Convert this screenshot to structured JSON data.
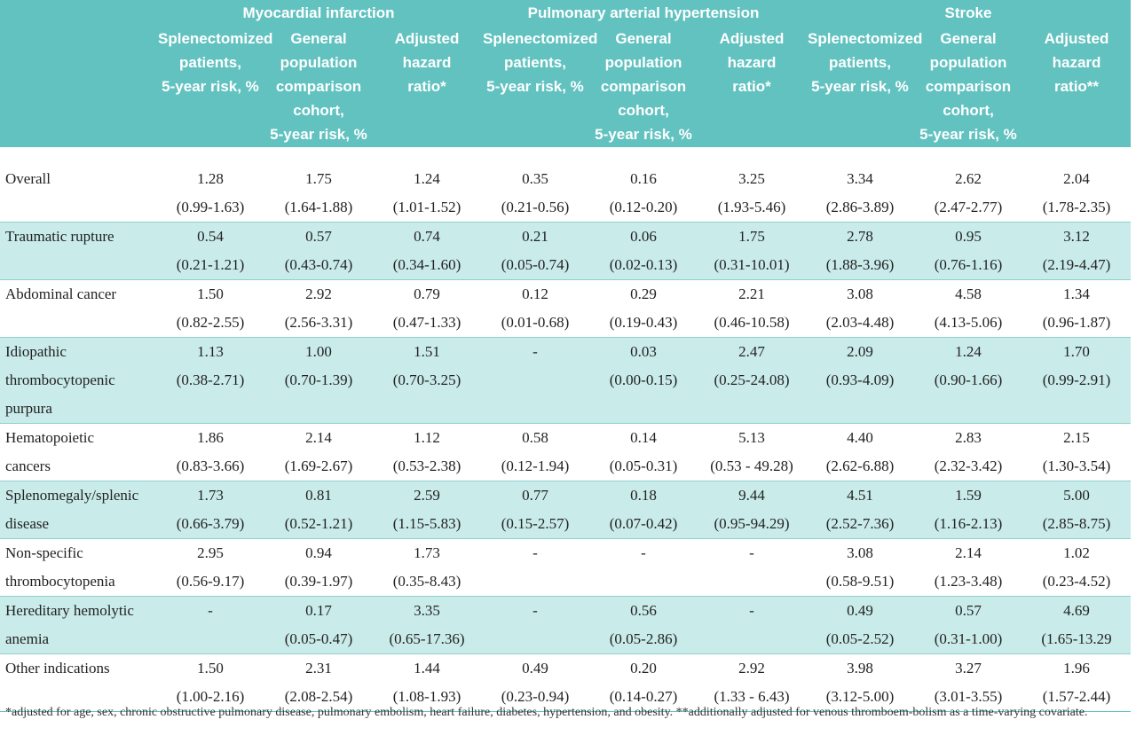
{
  "groups": {
    "mi": "Myocardial infarction",
    "pah": "Pulmonary arterial hypertension",
    "stroke": "Stroke"
  },
  "subheaders": {
    "splen": [
      "Splenectomized",
      "patients,",
      "5-year risk, %"
    ],
    "general": [
      "General",
      "population",
      "comparison",
      "cohort,",
      "5-year risk, %"
    ],
    "adj1": [
      "Adjusted",
      "hazard",
      "ratio*"
    ],
    "adj2": [
      "Adjusted",
      "hazard",
      "ratio**"
    ]
  },
  "rows": [
    {
      "label": [
        "Overall"
      ],
      "cells": [
        [
          "1.28",
          "(0.99-1.63)"
        ],
        [
          "1.75",
          "(1.64-1.88)"
        ],
        [
          "1.24",
          "(1.01-1.52)"
        ],
        [
          "0.35",
          "(0.21-0.56)"
        ],
        [
          "0.16",
          "(0.12-0.20)"
        ],
        [
          "3.25",
          "(1.93-5.46)"
        ],
        [
          "3.34",
          "(2.86-3.89)"
        ],
        [
          "2.62",
          "(2.47-2.77)"
        ],
        [
          "2.04",
          "(1.78-2.35)"
        ]
      ]
    },
    {
      "label": [
        "Traumatic rupture"
      ],
      "cells": [
        [
          "0.54",
          "(0.21-1.21)"
        ],
        [
          "0.57",
          "(0.43-0.74)"
        ],
        [
          "0.74",
          "(0.34-1.60)"
        ],
        [
          "0.21",
          "(0.05-0.74)"
        ],
        [
          "0.06",
          "(0.02-0.13)"
        ],
        [
          "1.75",
          "(0.31-10.01)"
        ],
        [
          "2.78",
          "(1.88-3.96)"
        ],
        [
          "0.95",
          "(0.76-1.16)"
        ],
        [
          "3.12",
          "(2.19-4.47)"
        ]
      ]
    },
    {
      "label": [
        "Abdominal cancer"
      ],
      "cells": [
        [
          "1.50",
          "(0.82-2.55)"
        ],
        [
          "2.92",
          "(2.56-3.31)"
        ],
        [
          "0.79",
          "(0.47-1.33)"
        ],
        [
          "0.12",
          "(0.01-0.68)"
        ],
        [
          "0.29",
          "(0.19-0.43)"
        ],
        [
          "2.21",
          "(0.46-10.58)"
        ],
        [
          "3.08",
          "(2.03-4.48)"
        ],
        [
          "4.58",
          "(4.13-5.06)"
        ],
        [
          "1.34",
          "(0.96-1.87)"
        ]
      ]
    },
    {
      "label": [
        "Idiopathic",
        "thrombocytopenic",
        "purpura"
      ],
      "cells": [
        [
          "1.13",
          "(0.38-2.71)"
        ],
        [
          "1.00",
          "(0.70-1.39)"
        ],
        [
          "1.51",
          "(0.70-3.25)"
        ],
        [
          "-",
          ""
        ],
        [
          "0.03",
          "(0.00-0.15)"
        ],
        [
          "2.47",
          "(0.25-24.08)"
        ],
        [
          "2.09",
          "(0.93-4.09)"
        ],
        [
          "1.24",
          "(0.90-1.66)"
        ],
        [
          "1.70",
          "(0.99-2.91)"
        ]
      ]
    },
    {
      "label": [
        "Hematopoietic",
        "cancers"
      ],
      "cells": [
        [
          "1.86",
          "(0.83-3.66)"
        ],
        [
          "2.14",
          "(1.69-2.67)"
        ],
        [
          "1.12",
          "(0.53-2.38)"
        ],
        [
          "0.58",
          "(0.12-1.94)"
        ],
        [
          "0.14",
          "(0.05-0.31)"
        ],
        [
          "5.13",
          "(0.53 - 49.28)"
        ],
        [
          "4.40",
          "(2.62-6.88)"
        ],
        [
          "2.83",
          "(2.32-3.42)"
        ],
        [
          "2.15",
          "(1.30-3.54)"
        ]
      ]
    },
    {
      "label": [
        "Splenomegaly/splenic",
        "disease"
      ],
      "cells": [
        [
          "1.73",
          "(0.66-3.79)"
        ],
        [
          "0.81",
          "(0.52-1.21)"
        ],
        [
          "2.59",
          "(1.15-5.83)"
        ],
        [
          "0.77",
          "(0.15-2.57)"
        ],
        [
          "0.18",
          "(0.07-0.42)"
        ],
        [
          "9.44",
          "(0.95-94.29)"
        ],
        [
          "4.51",
          "(2.52-7.36)"
        ],
        [
          "1.59",
          "(1.16-2.13)"
        ],
        [
          "5.00",
          "(2.85-8.75)"
        ]
      ]
    },
    {
      "label": [
        "Non-specific",
        "thrombocytopenia"
      ],
      "cells": [
        [
          "2.95",
          "(0.56-9.17)"
        ],
        [
          "0.94",
          "(0.39-1.97)"
        ],
        [
          "1.73",
          "(0.35-8.43)"
        ],
        [
          "-",
          ""
        ],
        [
          "-",
          ""
        ],
        [
          "-",
          ""
        ],
        [
          "3.08",
          "(0.58-9.51)"
        ],
        [
          "2.14",
          "(1.23-3.48)"
        ],
        [
          "1.02",
          "(0.23-4.52)"
        ]
      ]
    },
    {
      "label": [
        "Hereditary hemolytic",
        "anemia"
      ],
      "cells": [
        [
          "-",
          ""
        ],
        [
          "0.17",
          "(0.05-0.47)"
        ],
        [
          "3.35",
          "(0.65-17.36)"
        ],
        [
          "-",
          ""
        ],
        [
          "0.56",
          "(0.05-2.86)"
        ],
        [
          "-",
          ""
        ],
        [
          "0.49",
          "(0.05-2.52)"
        ],
        [
          "0.57",
          "(0.31-1.00)"
        ],
        [
          "4.69",
          "(1.65-13.29"
        ]
      ]
    },
    {
      "label": [
        "Other indications"
      ],
      "cells": [
        [
          "1.50",
          "(1.00-2.16)"
        ],
        [
          "2.31",
          "(2.08-2.54)"
        ],
        [
          "1.44",
          "(1.08-1.93)"
        ],
        [
          "0.49",
          "(0.23-0.94)"
        ],
        [
          "0.20",
          "(0.14-0.27)"
        ],
        [
          "2.92",
          "(1.33 - 6.43)"
        ],
        [
          "3.98",
          "(3.12-5.00)"
        ],
        [
          "3.27",
          "(3.01-3.55)"
        ],
        [
          "1.96",
          "(1.57-2.44)"
        ]
      ]
    }
  ],
  "footnote": "*adjusted for age, sex, chronic obstructive pulmonary disease, pulmonary embolism, heart failure, diabetes, hypertension, and obesity. **additionally adjusted for venous thromboem-bolism as a time-varying covariate."
}
